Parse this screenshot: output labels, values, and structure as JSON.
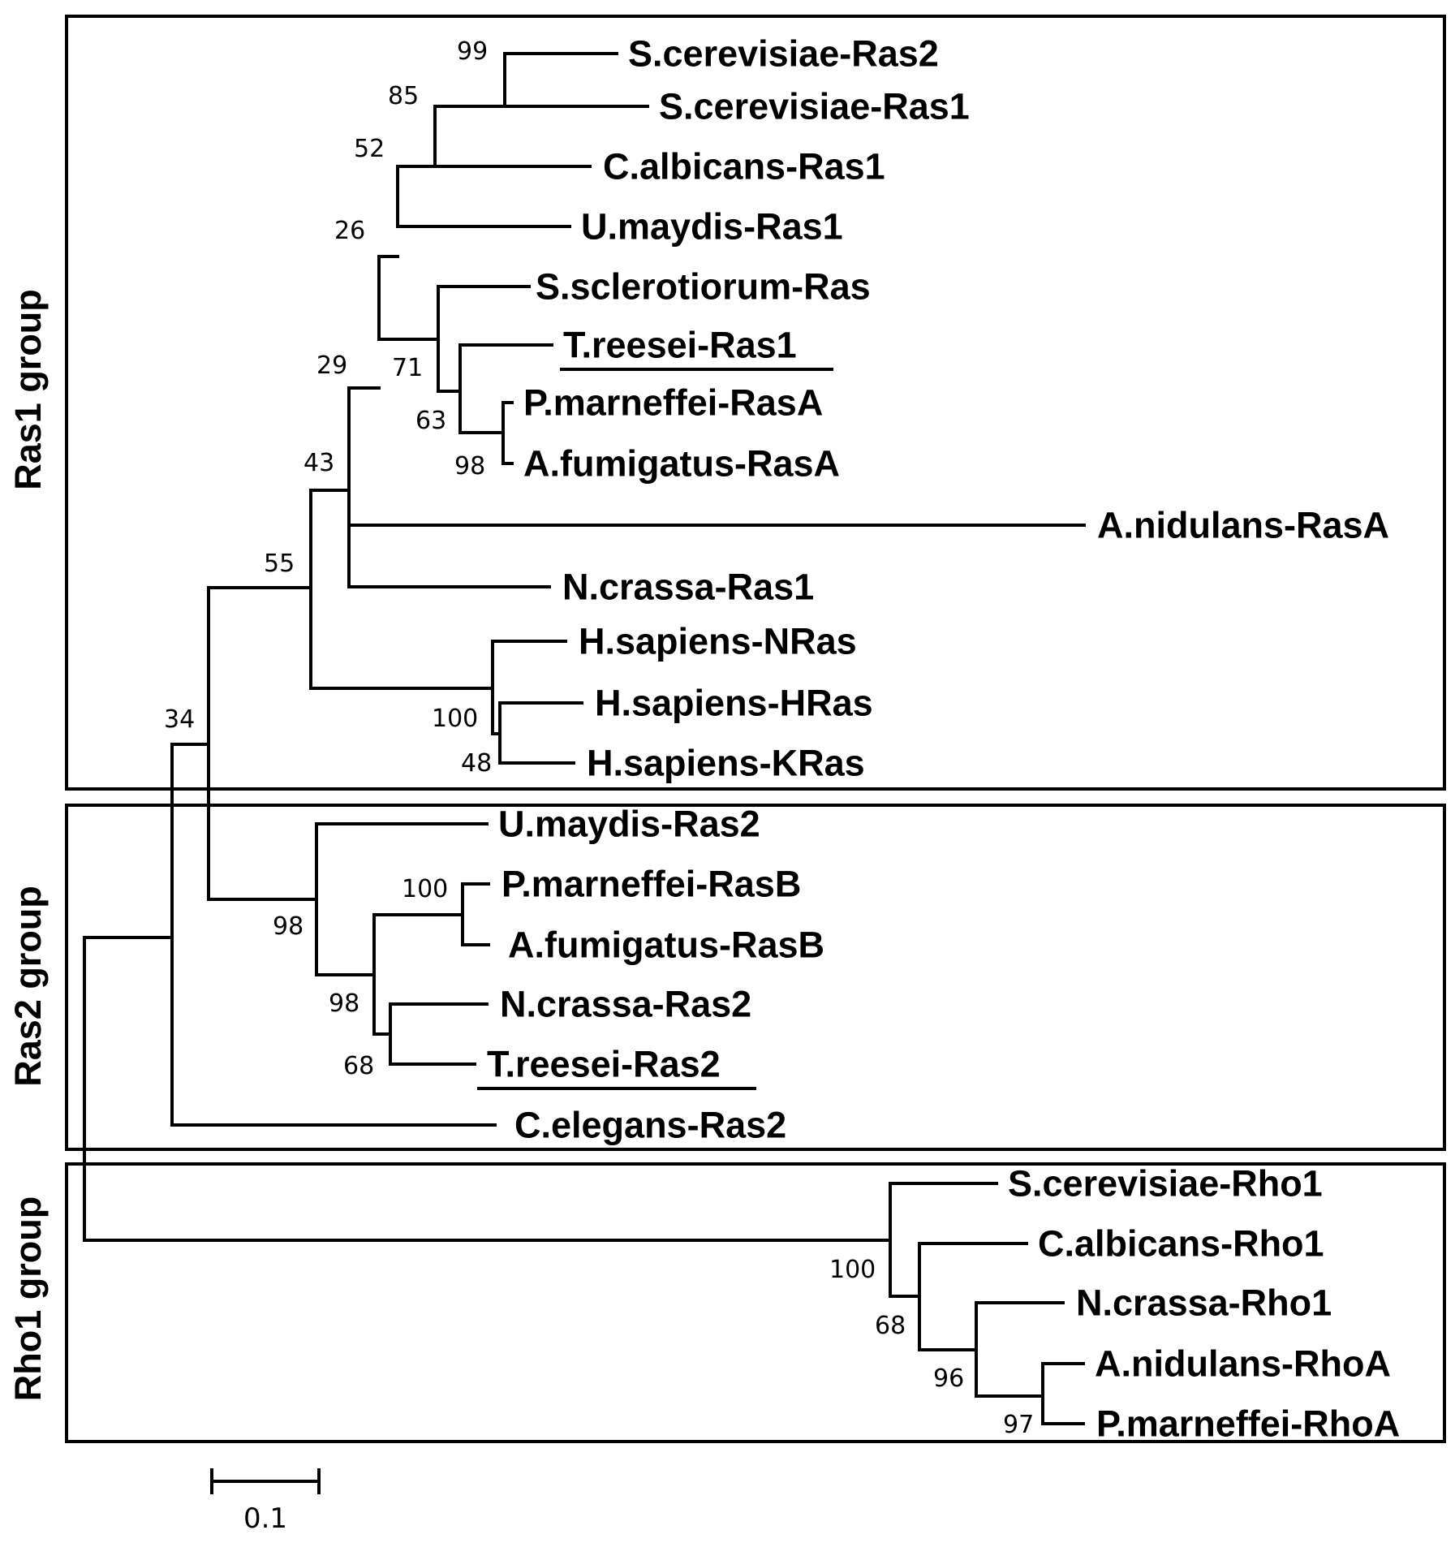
{
  "groups": {
    "ras1": "Ras1 group",
    "ras2": "Ras2 group",
    "rho1": "Rho1 group"
  },
  "taxa": {
    "sc_ras2": "S.cerevisiae-Ras2",
    "sc_ras1": "S.cerevisiae-Ras1",
    "ca_ras1": "C.albicans-Ras1",
    "um_ras1": "U.maydis-Ras1",
    "ss_ras": "S.sclerotiorum-Ras",
    "tr_ras1": "T.reesei-Ras1",
    "pm_rasa": "P.marneffei-RasA",
    "af_rasa": "A.fumigatus-RasA",
    "an_rasa": "A.nidulans-RasA",
    "nc_ras1": "N.crassa-Ras1",
    "hs_nras": "H.sapiens-NRas",
    "hs_hras": "H.sapiens-HRas",
    "hs_kras": "H.sapiens-KRas",
    "um_ras2": "U.maydis-Ras2",
    "pm_rasb": "P.marneffei-RasB",
    "af_rasb": "A.fumigatus-RasB",
    "nc_ras2": "N.crassa-Ras2",
    "tr_ras2": "T.reesei-Ras2",
    "ce_ras2": "C.elegans-Ras2",
    "sc_rho1": "S.cerevisiae-Rho1",
    "ca_rho1": "C.albicans-Rho1",
    "nc_rho1": "N.crassa-Rho1",
    "an_rhoa": "A.nidulans-RhoA",
    "pm_rhoa": "P.marneffei-RhoA"
  },
  "bootstrap": {
    "b99": "99",
    "b85": "85",
    "b52": "52",
    "b26": "26",
    "b71": "71",
    "b29": "29",
    "b63": "63",
    "b98a": "98",
    "b43": "43",
    "b55": "55",
    "b100a": "100",
    "b48": "48",
    "b34": "34",
    "b100b": "100",
    "b98b": "98",
    "b98c": "98",
    "b68a": "68",
    "b100c": "100",
    "b68b": "68",
    "b96": "96",
    "b97": "97"
  },
  "scale_bar": {
    "label": "0.1",
    "length": 0.1
  }
}
